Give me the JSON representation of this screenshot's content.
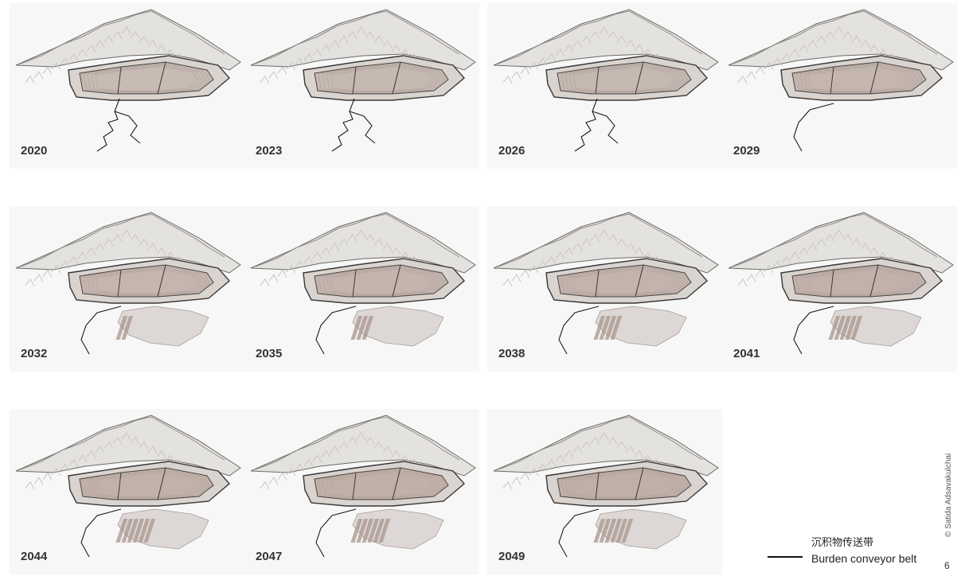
{
  "panels": [
    {
      "year": "2020"
    },
    {
      "year": "2023"
    },
    {
      "year": "2026"
    },
    {
      "year": "2029"
    },
    {
      "year": "2032"
    },
    {
      "year": "2035"
    },
    {
      "year": "2038"
    },
    {
      "year": "2041"
    },
    {
      "year": "2044"
    },
    {
      "year": "2047"
    },
    {
      "year": "2049"
    }
  ],
  "legend": {
    "label_zh": "沉积物传送带",
    "label_en": "Burden conveyor belt",
    "line_color": "#111111"
  },
  "credit": "© Satida Adsavakulchai",
  "page_number": "6",
  "colors": {
    "terrain": "#e4e2df",
    "terrain_shade": "#c9c6c2",
    "pit_fill": "#b8a59c",
    "pit_light": "#d9d4d0",
    "dump_fill": "#ddd8d5",
    "dump_stripe": "#a8958c",
    "conveyor": "#1a1a1a"
  }
}
